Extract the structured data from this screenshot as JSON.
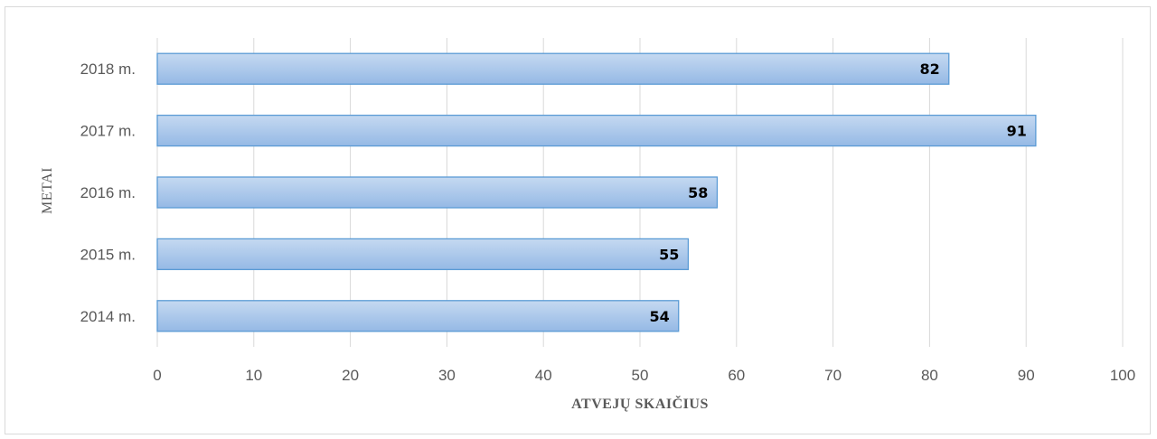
{
  "chart_data": {
    "type": "bar",
    "orientation": "horizontal",
    "categories": [
      "2018 m.",
      "2017 m.",
      "2016 m.",
      "2015 m.",
      "2014 m."
    ],
    "values": [
      82,
      91,
      58,
      55,
      54
    ],
    "xlabel": "ATVEJŲ SKAIČIUS",
    "ylabel": "METAI",
    "xlim": [
      0,
      100
    ],
    "xticks": [
      0,
      10,
      20,
      30,
      40,
      50,
      60,
      70,
      80,
      90,
      100
    ],
    "grid": "vertical",
    "data_labels": true,
    "legend": "none",
    "colors": {
      "bar_fill_top": "#bdd3ee",
      "bar_fill_bottom": "#9bbce6",
      "bar_stroke": "#5b9bd5",
      "grid": "#d9d9d9"
    }
  }
}
